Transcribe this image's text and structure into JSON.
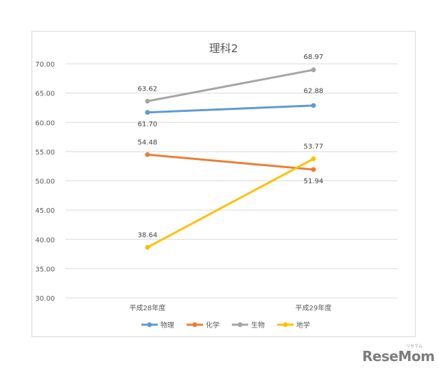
{
  "chart_data": {
    "type": "line",
    "title": "理科2",
    "categories": [
      "平成28年度",
      "平成29年度"
    ],
    "y_ticks": [
      "70.00",
      "65.00",
      "60.00",
      "55.00",
      "50.00",
      "45.00",
      "40.00",
      "35.00",
      "30.00"
    ],
    "ylim": [
      30,
      70
    ],
    "grid": true,
    "legend_position": "bottom",
    "series": [
      {
        "name": "物理",
        "color": "#5b9bd5",
        "values": [
          61.7,
          62.88
        ],
        "labels": [
          "61.70",
          "62.88"
        ]
      },
      {
        "name": "化学",
        "color": "#ed7d31",
        "values": [
          54.48,
          51.94
        ],
        "labels": [
          "54.48",
          "51.94"
        ]
      },
      {
        "name": "生物",
        "color": "#a5a5a5",
        "values": [
          63.62,
          68.97
        ],
        "labels": [
          "63.62",
          "68.97"
        ]
      },
      {
        "name": "地学",
        "color": "#ffc000",
        "values": [
          38.64,
          53.77
        ],
        "labels": [
          "38.64",
          "53.77"
        ]
      }
    ]
  },
  "watermark": {
    "text": "ReseMom",
    "small": "リセマム"
  }
}
